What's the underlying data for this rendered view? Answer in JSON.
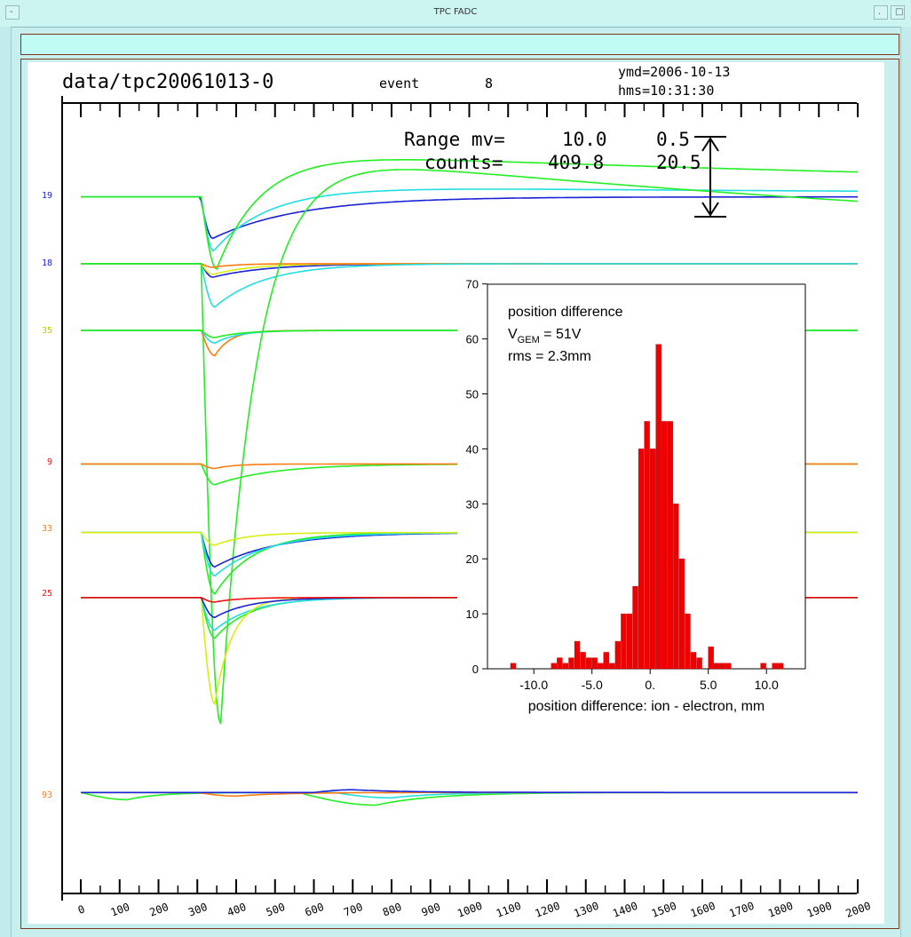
{
  "window": {
    "title": "TPC FADC"
  },
  "header": {
    "file": "data/tpc20061013-0",
    "event_label": "event",
    "event_number": "8",
    "ymd": "ymd=2006-10-13",
    "hms": "hms=10:31:30"
  },
  "range_box": {
    "range_label": "Range mv=",
    "range_value": "10.0",
    "range_value2": "0.5",
    "counts_label": "counts=",
    "counts_value": "409.8",
    "counts_value2": "20.5"
  },
  "channel_labels": [
    {
      "text": "19"
    },
    {
      "text": "18"
    },
    {
      "text": "35"
    },
    {
      "text": "9"
    },
    {
      "text": "33"
    },
    {
      "text": "25"
    },
    {
      "text": "93"
    }
  ],
  "colors": {
    "blue": "#1a22d8",
    "cyan": "#22dde0",
    "green": "#22ee22",
    "yellow": "#d8ee10",
    "orange": "#ff7a10",
    "red": "#ee1010",
    "hist_fill": "#ee0000"
  },
  "chart_data": [
    {
      "type": "line",
      "title": "",
      "xlabel": "",
      "ylabel": "",
      "x_ticks": [
        "0",
        "100",
        "200",
        "300",
        "400",
        "500",
        "600",
        "700",
        "800",
        "900",
        "1000",
        "1100",
        "1200",
        "1300",
        "1400",
        "1500",
        "1600",
        "1700",
        "1800",
        "1900",
        "2000"
      ],
      "xlim": [
        -60,
        2030
      ],
      "baselines": [
        {
          "label": "19",
          "baseline_mv": 0
        },
        {
          "label": "18",
          "baseline_mv": -7.4
        },
        {
          "label": "35",
          "baseline_mv": -14.8
        },
        {
          "label": "9",
          "baseline_mv": -29.6
        },
        {
          "label": "33",
          "baseline_mv": -37.2
        },
        {
          "label": "25",
          "baseline_mv": -44.4
        },
        {
          "label": "93",
          "baseline_mv": -66.0
        }
      ],
      "series": [
        {
          "channel": "19",
          "color": "blue",
          "pulses": [
            {
              "start": 308,
              "peak_time": 340,
              "amplitude_mv": -4.6,
              "decay": 220,
              "overshoot": 0
            }
          ]
        },
        {
          "channel": "19",
          "color": "cyan",
          "pulses": [
            {
              "start": 310,
              "peak_time": 342,
              "amplitude_mv": -6.0,
              "decay": 150,
              "overshoot": 1.2
            }
          ]
        },
        {
          "channel": "19",
          "color": "green",
          "pulses": [
            {
              "start": 310,
              "peak_time": 350,
              "amplitude_mv": -8.0,
              "decay": 120,
              "overshoot": 5.2
            }
          ]
        },
        {
          "channel": "18",
          "color": "blue",
          "pulses": [
            {
              "start": 310,
              "peak_time": 340,
              "amplitude_mv": -1.5,
              "decay": 140,
              "overshoot": 0
            }
          ]
        },
        {
          "channel": "18",
          "color": "yellow",
          "pulses": [
            {
              "start": 310,
              "peak_time": 340,
              "amplitude_mv": -1.2,
              "decay": 100,
              "overshoot": 0
            }
          ]
        },
        {
          "channel": "18",
          "color": "orange",
          "pulses": [
            {
              "start": 310,
              "peak_time": 340,
              "amplitude_mv": -0.4,
              "decay": 60,
              "overshoot": 0
            }
          ]
        },
        {
          "channel": "18",
          "color": "cyan",
          "pulses": [
            {
              "start": 310,
              "peak_time": 345,
              "amplitude_mv": -4.8,
              "decay": 130,
              "overshoot": 0
            }
          ]
        },
        {
          "channel": "18",
          "color": "green",
          "pulses": [
            {
              "start": 310,
              "peak_time": 360,
              "amplitude_mv": -51.0,
              "decay": 90,
              "overshoot": 13
            }
          ]
        },
        {
          "channel": "35",
          "color": "orange",
          "pulses": [
            {
              "start": 310,
              "peak_time": 345,
              "amplitude_mv": -2.8,
              "decay": 40,
              "overshoot": 0
            }
          ]
        },
        {
          "channel": "35",
          "color": "cyan",
          "pulses": [
            {
              "start": 310,
              "peak_time": 345,
              "amplitude_mv": -1.4,
              "decay": 60,
              "overshoot": 0
            }
          ]
        },
        {
          "channel": "35",
          "color": "green",
          "pulses": [
            {
              "start": 310,
              "peak_time": 345,
              "amplitude_mv": -0.8,
              "decay": 70,
              "overshoot": 0
            }
          ]
        },
        {
          "channel": "9",
          "color": "green",
          "pulses": [
            {
              "start": 310,
              "peak_time": 345,
              "amplitude_mv": -2.3,
              "decay": 150,
              "overshoot": 0
            }
          ]
        },
        {
          "channel": "9",
          "color": "orange",
          "pulses": [
            {
              "start": 310,
              "peak_time": 345,
              "amplitude_mv": -0.5,
              "decay": 50,
              "overshoot": 0
            }
          ]
        },
        {
          "channel": "33",
          "color": "blue",
          "pulses": [
            {
              "start": 310,
              "peak_time": 345,
              "amplitude_mv": -3.8,
              "decay": 160,
              "overshoot": 0
            }
          ]
        },
        {
          "channel": "33",
          "color": "green",
          "pulses": [
            {
              "start": 310,
              "peak_time": 345,
              "amplitude_mv": -6.8,
              "decay": 100,
              "overshoot": 0
            }
          ]
        },
        {
          "channel": "33",
          "color": "cyan",
          "pulses": [
            {
              "start": 310,
              "peak_time": 345,
              "amplitude_mv": -4.8,
              "decay": 130,
              "overshoot": 0
            }
          ]
        },
        {
          "channel": "33",
          "color": "yellow",
          "pulses": [
            {
              "start": 310,
              "peak_time": 345,
              "amplitude_mv": -1.4,
              "decay": 80,
              "overshoot": 0
            }
          ]
        },
        {
          "channel": "25",
          "color": "green",
          "pulses": [
            {
              "start": 310,
              "peak_time": 345,
              "amplitude_mv": -4.5,
              "decay": 90,
              "overshoot": 0
            }
          ]
        },
        {
          "channel": "25",
          "color": "cyan",
          "pulses": [
            {
              "start": 310,
              "peak_time": 345,
              "amplitude_mv": -3.6,
              "decay": 100,
              "overshoot": 0
            }
          ]
        },
        {
          "channel": "25",
          "color": "yellow",
          "pulses": [
            {
              "start": 310,
              "peak_time": 345,
              "amplitude_mv": -11.8,
              "decay": 45,
              "overshoot": 0
            }
          ]
        },
        {
          "channel": "25",
          "color": "blue",
          "pulses": [
            {
              "start": 310,
              "peak_time": 345,
              "amplitude_mv": -2.2,
              "decay": 90,
              "overshoot": 0
            }
          ]
        },
        {
          "channel": "25",
          "color": "red",
          "pulses": [
            {
              "start": 310,
              "peak_time": 345,
              "amplitude_mv": -0.5,
              "decay": 60,
              "overshoot": 0
            }
          ]
        },
        {
          "channel": "93",
          "color": "green",
          "pulses": [
            {
              "start": 0,
              "peak_time": 120,
              "amplitude_mv": -0.8,
              "decay": 80,
              "overshoot": 0
            },
            {
              "start": 560,
              "peak_time": 760,
              "amplitude_mv": -1.4,
              "decay": 150,
              "overshoot": 0
            }
          ]
        },
        {
          "channel": "93",
          "color": "cyan",
          "pulses": [
            {
              "start": 650,
              "peak_time": 800,
              "amplitude_mv": -0.6,
              "decay": 120,
              "overshoot": 0
            }
          ]
        },
        {
          "channel": "93",
          "color": "orange",
          "pulses": [
            {
              "start": 300,
              "peak_time": 400,
              "amplitude_mv": -0.4,
              "decay": 120,
              "overshoot": 0
            }
          ]
        },
        {
          "channel": "93",
          "color": "blue",
          "pulses": [
            {
              "start": 600,
              "peak_time": 700,
              "amplitude_mv": 0.3,
              "decay": 140,
              "overshoot": 0
            }
          ]
        }
      ]
    },
    {
      "type": "bar",
      "title": "",
      "annotations": [
        "position difference",
        "V",
        "GEM",
        " = 51V",
        "rms = 2.3mm"
      ],
      "xlabel": "position difference: ion - electron, mm",
      "ylabel": "",
      "xlim": [
        -12.5,
        12.5
      ],
      "ylim": [
        0,
        70
      ],
      "x_ticks": [
        "-10.0",
        "-5.0",
        "0.",
        "5.0",
        "10.0"
      ],
      "y_ticks": [
        "0",
        "10",
        "20",
        "30",
        "40",
        "50",
        "60",
        "70"
      ],
      "bin_width": 0.5,
      "bin_start": -12,
      "values": [
        1,
        0,
        0,
        0,
        0,
        0,
        0,
        1,
        2,
        1,
        2,
        5,
        3,
        2,
        2,
        1,
        3,
        1,
        5,
        10,
        10,
        15,
        40,
        45,
        40,
        59,
        45,
        45,
        30,
        20,
        10,
        3,
        2,
        0,
        4,
        1,
        1,
        1,
        0,
        0,
        0,
        0,
        0,
        1,
        0,
        1,
        1,
        0,
        0,
        0
      ]
    }
  ]
}
